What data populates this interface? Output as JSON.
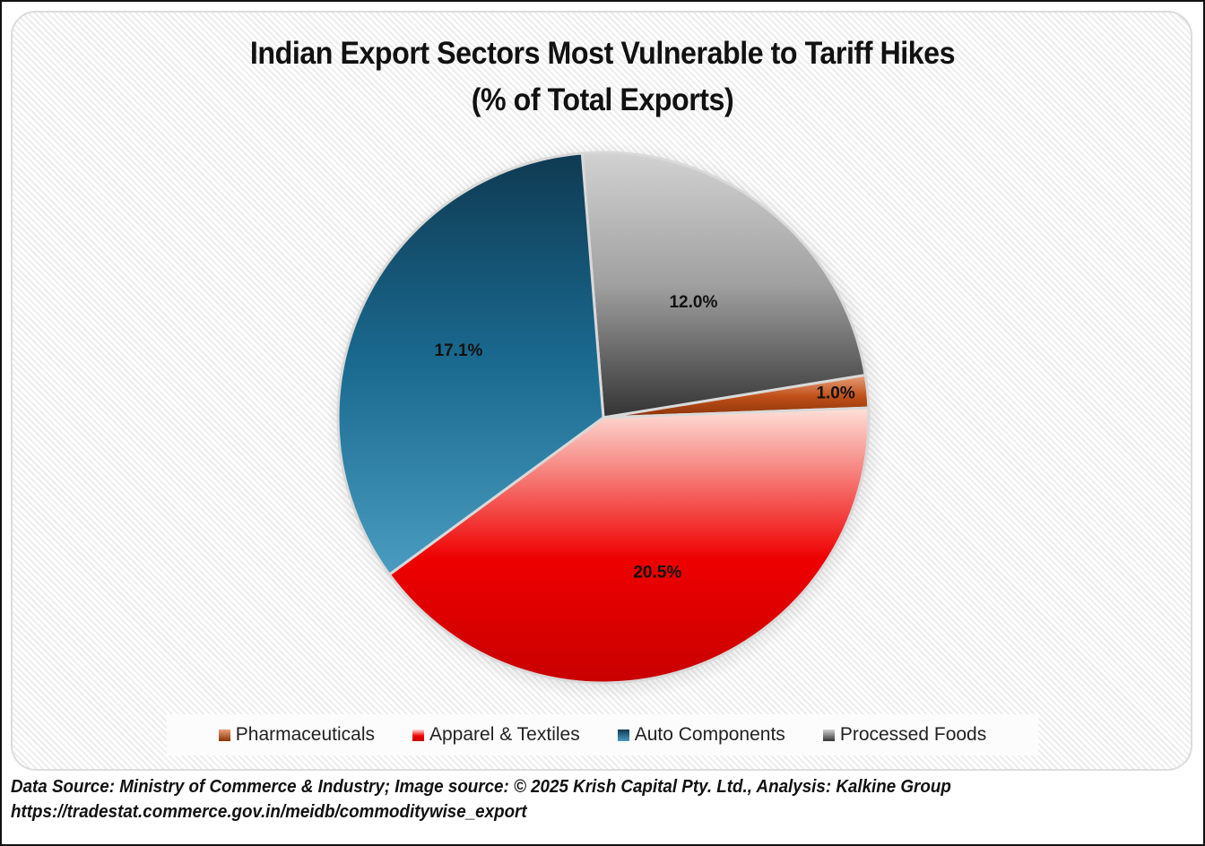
{
  "chart_data": {
    "type": "pie",
    "title": "Indian Export Sectors Most Vulnerable to Tariff Hikes",
    "subtitle": "(% of Total Exports)",
    "categories": [
      "Processed Foods",
      "Pharmaceuticals",
      "Apparel & Textiles",
      "Auto Components"
    ],
    "values": [
      12.0,
      1.0,
      20.5,
      17.1
    ],
    "data_labels": [
      "12.0%",
      "1.0%",
      "20.5%",
      "17.1%"
    ],
    "legend_order": [
      "Pharmaceuticals",
      "Apparel & Textiles",
      "Auto Components",
      "Processed Foods"
    ],
    "legend_position": "bottom",
    "colors": {
      "Pharmaceuticals": [
        "#e8a07a",
        "#c0501a",
        "#8a3208"
      ],
      "Apparel & Textiles": [
        "#fde0d8",
        "#ee0000",
        "#c80000"
      ],
      "Auto Components": [
        "#0f3a52",
        "#1a6a90",
        "#4a9cc0"
      ],
      "Processed Foods": [
        "#d2d2d2",
        "#a0a0a0",
        "#333333"
      ]
    }
  },
  "header": {
    "title_line1": "Indian Export Sectors Most Vulnerable to Tariff Hikes",
    "title_line2": "(% of Total Exports)"
  },
  "legend": {
    "items": [
      {
        "label": "Pharmaceuticals",
        "color": "#c0501a"
      },
      {
        "label": "Apparel & Textiles",
        "color": "#e00000"
      },
      {
        "label": "Auto Components",
        "color": "#1a6a90"
      },
      {
        "label": "Processed Foods",
        "color": "#808080"
      }
    ]
  },
  "footer": {
    "source_line": "Data Source:  Ministry of Commerce & Industry; Image source: © 2025 Krish Capital Pty. Ltd., Analysis: Kalkine Group",
    "url_line": "https://tradestat.commerce.gov.in/meidb/commoditywise_export"
  }
}
